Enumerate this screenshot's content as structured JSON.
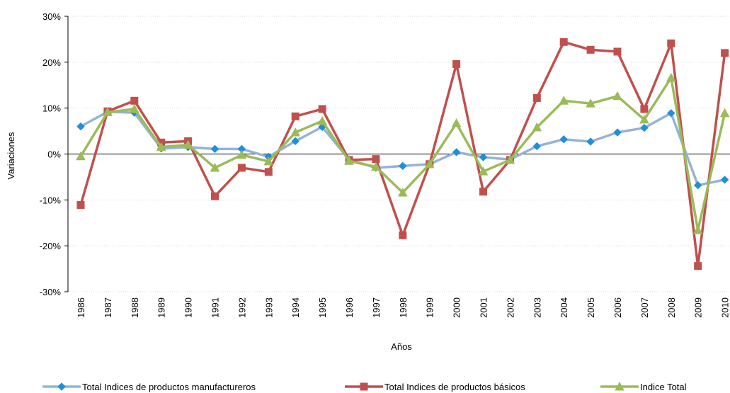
{
  "chart_data": {
    "type": "line",
    "title": "",
    "xlabel": "Años",
    "ylabel": "Variaciones",
    "ylim": [
      -0.3,
      0.3
    ],
    "y_ticks": [
      {
        "value": 0.3,
        "label": "30%"
      },
      {
        "value": 0.2,
        "label": "20%"
      },
      {
        "value": 0.1,
        "label": "10%"
      },
      {
        "value": 0.0,
        "label": "0%"
      },
      {
        "value": -0.1,
        "label": "-10%"
      },
      {
        "value": -0.2,
        "label": "-20%"
      },
      {
        "value": -0.3,
        "label": "-30%"
      }
    ],
    "categories": [
      "1986",
      "1987",
      "1988",
      "1989",
      "1990",
      "1991",
      "1992",
      "1993",
      "1994",
      "1995",
      "1996",
      "1997",
      "1998",
      "1999",
      "2000",
      "2001",
      "2002",
      "2003",
      "2004",
      "2005",
      "2006",
      "2007",
      "2008",
      "2009",
      "2010"
    ],
    "grid": true,
    "legend_position": "bottom",
    "series": [
      {
        "name": "Total Indices de productos manufactureros",
        "color": "#95b3d7",
        "marker": "diamond",
        "marker_color": "#1f8fd8",
        "values": [
          0.06,
          0.092,
          0.09,
          0.012,
          0.015,
          0.011,
          0.011,
          -0.006,
          0.028,
          0.059,
          -0.012,
          -0.03,
          -0.026,
          -0.022,
          0.004,
          -0.007,
          -0.012,
          0.017,
          0.032,
          0.027,
          0.047,
          0.057,
          0.089,
          -0.068,
          -0.056
        ]
      },
      {
        "name": "Total Indices de productos básicos",
        "color": "#c0504d",
        "marker": "square",
        "marker_color": "#c0504d",
        "values": [
          -0.111,
          0.093,
          0.116,
          0.025,
          0.028,
          -0.092,
          -0.03,
          -0.039,
          0.082,
          0.098,
          -0.013,
          -0.011,
          -0.177,
          -0.022,
          0.196,
          -0.082,
          -0.013,
          0.122,
          0.244,
          0.227,
          0.223,
          0.098,
          0.241,
          -0.244,
          0.22
        ]
      },
      {
        "name": "Indice Total",
        "color": "#9bbb59",
        "marker": "triangle",
        "marker_color": "#9bbb59",
        "values": [
          -0.005,
          0.091,
          0.098,
          0.015,
          0.02,
          -0.03,
          -0.002,
          -0.016,
          0.047,
          0.072,
          -0.015,
          -0.028,
          -0.084,
          -0.022,
          0.067,
          -0.038,
          -0.013,
          0.058,
          0.116,
          0.11,
          0.126,
          0.075,
          0.166,
          -0.166,
          0.089
        ]
      }
    ]
  }
}
